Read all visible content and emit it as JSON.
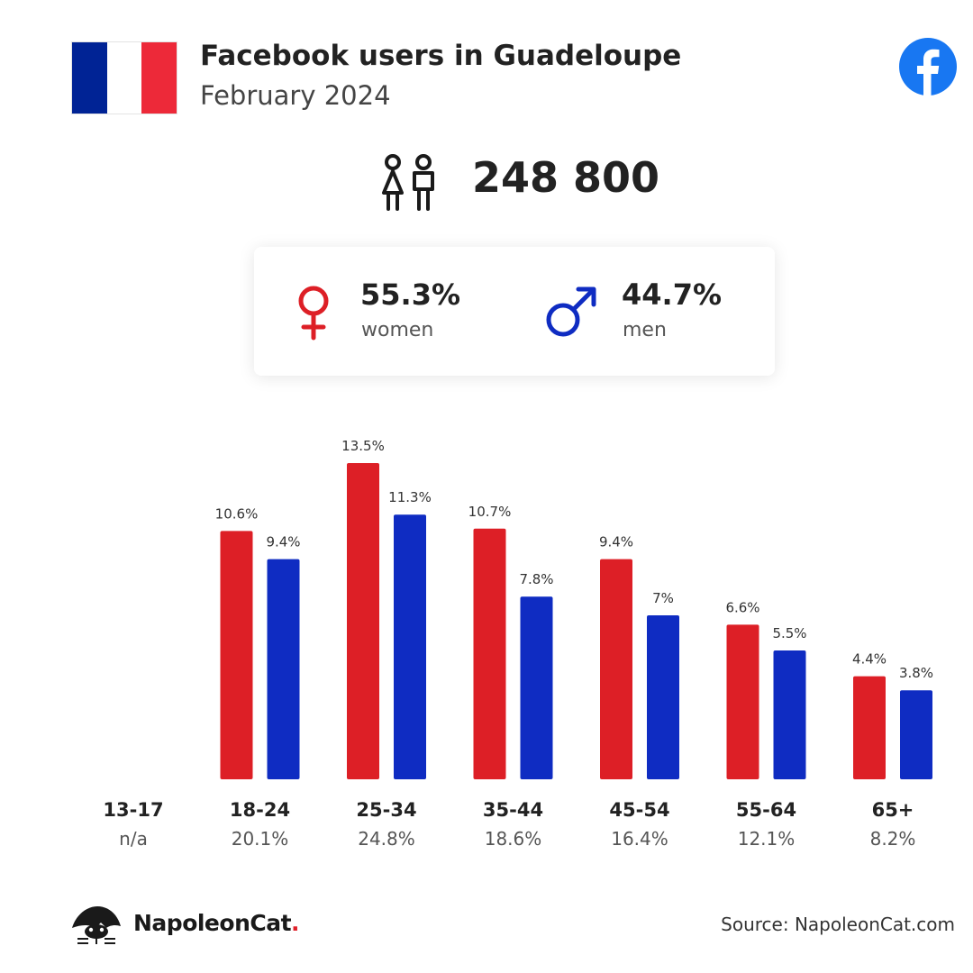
{
  "header": {
    "title": "Facebook users in Guadeloupe",
    "subtitle": "February 2024",
    "flag_colors": [
      "#002395",
      "#ffffff",
      "#ed2939"
    ]
  },
  "icons": [
    "france-flag-icon",
    "facebook-logo-icon",
    "people-icon",
    "female-icon",
    "male-icon",
    "napoleoncat-logo-icon"
  ],
  "total": {
    "value": "248 800"
  },
  "gender": {
    "women": {
      "pct": "55.3%",
      "label": "women",
      "color": "#dd1f26"
    },
    "men": {
      "pct": "44.7%",
      "label": "men",
      "color": "#0f2cc2"
    }
  },
  "colors": {
    "women": "#dd1f26",
    "men": "#0f2cc2",
    "facebook": "#1877f2"
  },
  "chart_data": {
    "type": "bar",
    "categories": [
      "13-17",
      "18-24",
      "25-34",
      "35-44",
      "45-54",
      "55-64",
      "65+"
    ],
    "category_totals": [
      "n/a",
      "20.1%",
      "24.8%",
      "18.6%",
      "16.4%",
      "12.1%",
      "8.2%"
    ],
    "series": [
      {
        "values": [
          null,
          10.6,
          13.5,
          10.7,
          9.4,
          6.6,
          4.4
        ],
        "labels": [
          "",
          "10.6%",
          "13.5%",
          "10.7%",
          "9.4%",
          "6.6%",
          "4.4%"
        ],
        "color": "#dd1f26"
      },
      {
        "values": [
          null,
          9.4,
          11.3,
          7.8,
          7,
          5.5,
          3.8
        ],
        "labels": [
          "",
          "9.4%",
          "11.3%",
          "7.8%",
          "7%",
          "5.5%",
          "3.8%"
        ],
        "color": "#0f2cc2"
      }
    ],
    "ylim": [
      0,
      13.5
    ],
    "grid": false,
    "legend": "none"
  },
  "footer": {
    "brand": "NapoleonCat",
    "brand_dot": ".",
    "source": "Source: NapoleonCat.com"
  }
}
